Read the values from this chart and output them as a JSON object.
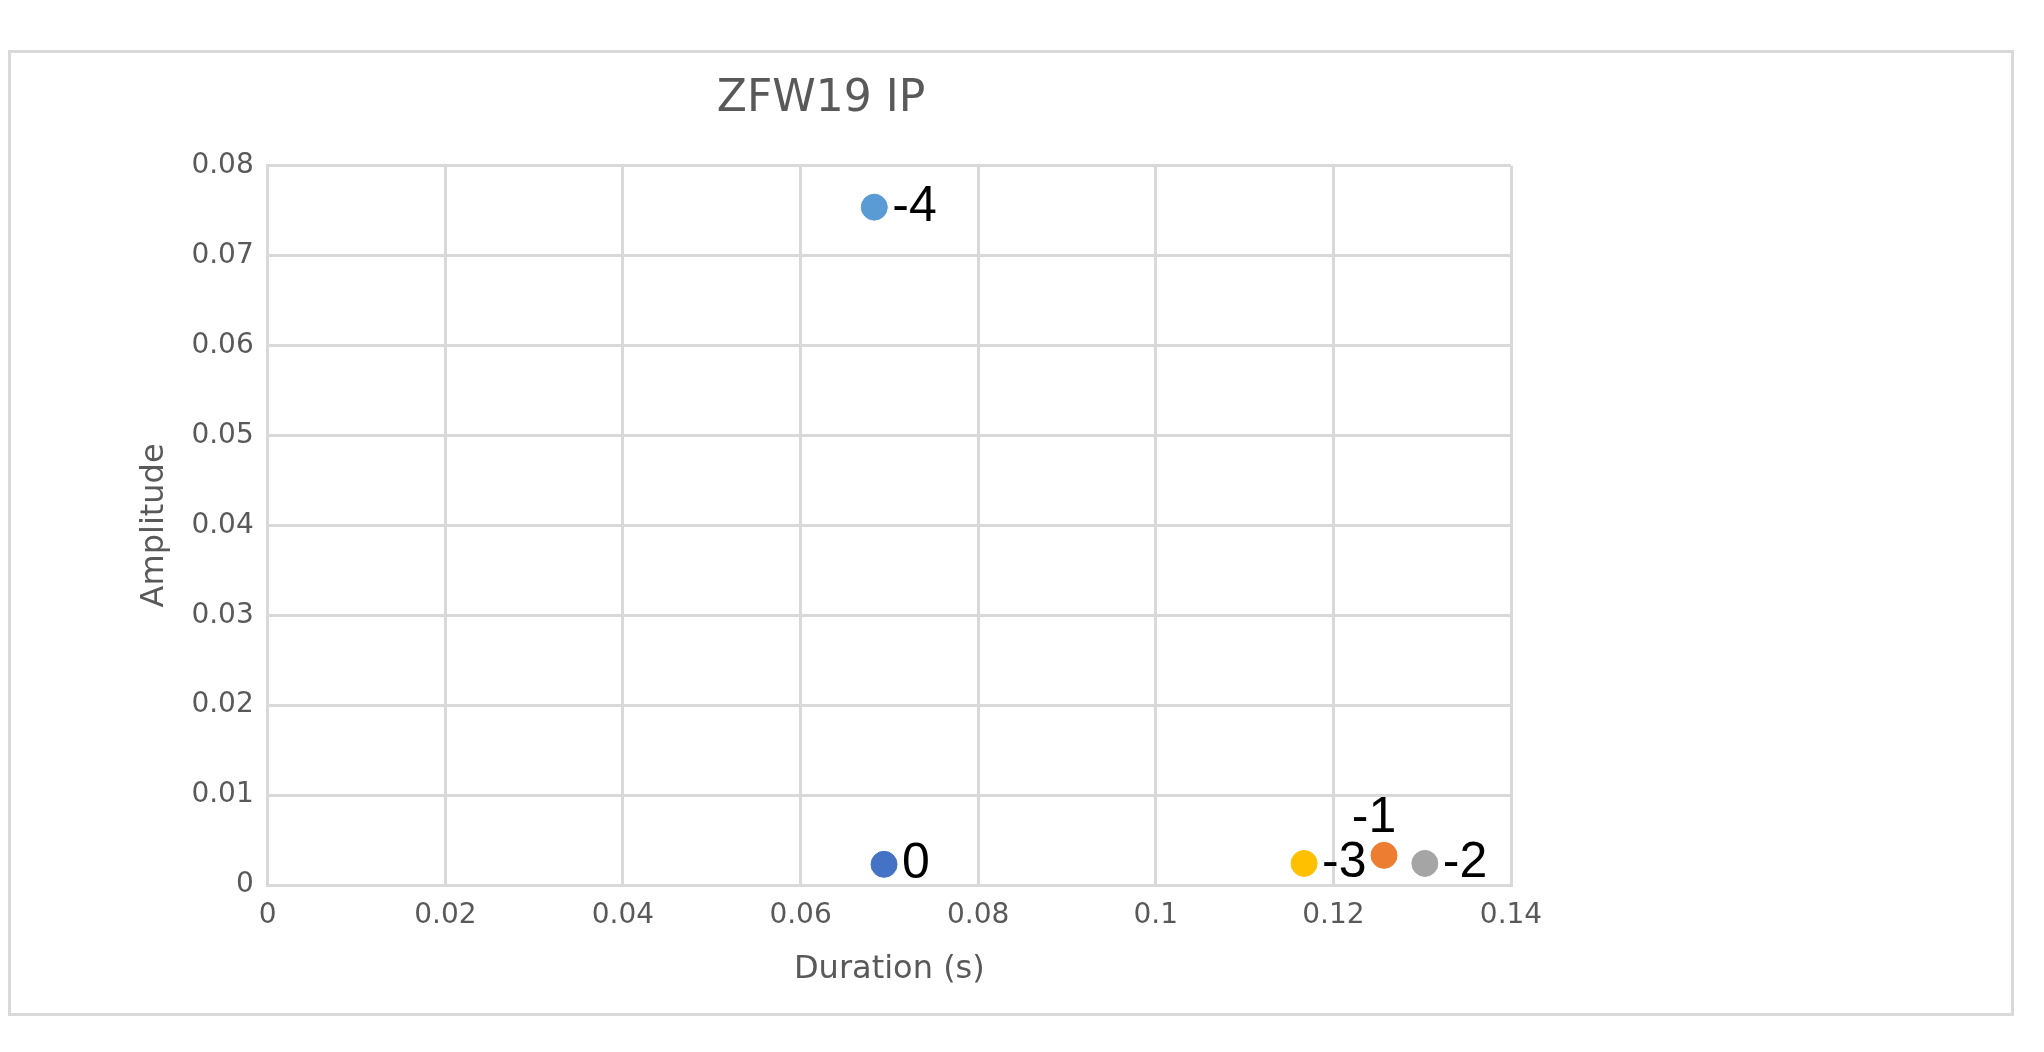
{
  "chart_data": {
    "type": "scatter",
    "title": "ZFW19 IP",
    "xlabel": "Duration (s)",
    "ylabel": "Amplitude",
    "series": [
      {
        "color": "#4472c4",
        "x": [
          0.0694
        ],
        "values": [
          0.0023
        ]
      },
      {
        "color": "#ed7d31",
        "x": [
          0.1257
        ],
        "values": [
          0.0033
        ]
      },
      {
        "color": "#a5a5a5",
        "x": [
          0.1303
        ],
        "values": [
          0.0024
        ]
      },
      {
        "color": "#ffc000",
        "x": [
          0.1167
        ],
        "values": [
          0.0024
        ]
      },
      {
        "color": "#5b9bd5",
        "x": [
          0.0683
        ],
        "values": [
          0.0754
        ]
      }
    ],
    "xlim": [
      0,
      0.14
    ],
    "xticks": [
      0,
      0.02,
      0.04,
      0.06,
      0.08,
      0.1,
      0.12,
      0.14
    ],
    "ylim": [
      0,
      0.08
    ],
    "yticks": [
      0,
      0.01,
      0.02,
      0.03,
      0.04,
      0.05,
      0.06,
      0.07,
      0.08
    ],
    "grid": true,
    "marker": "circle",
    "annotations": [
      {
        "text": "0",
        "x": 0.0694,
        "y": 0.0023
      },
      {
        "text": "-1",
        "x": 0.1257,
        "y": 0.0033
      },
      {
        "text": "-2",
        "x": 0.1303,
        "y": 0.0024
      },
      {
        "text": "-3",
        "x": 0.1167,
        "y": 0.0024
      },
      {
        "text": "-4",
        "x": 0.0683,
        "y": 0.0754
      }
    ]
  }
}
